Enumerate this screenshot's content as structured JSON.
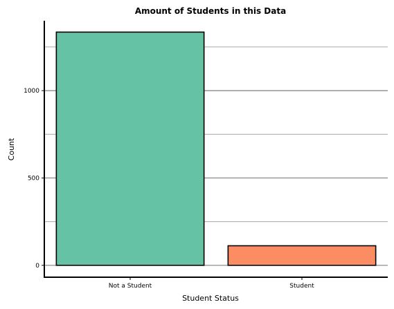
{
  "chart_data": {
    "type": "bar",
    "title": "Amount of Students in this Data",
    "xlabel": "Student Status",
    "ylabel": "Count",
    "categories": [
      "Not a Student",
      "Student"
    ],
    "values": [
      1335,
      112
    ],
    "colors": [
      "#66c2a5",
      "#fc8d62"
    ],
    "ylim": [
      -68,
      1400
    ],
    "yticks": [
      0,
      500,
      1000
    ],
    "ytick_labels": [
      "0",
      "500",
      "1000"
    ],
    "grid": {
      "axis": "y",
      "major": [
        0,
        500,
        1000
      ],
      "minor": [
        250,
        750,
        1250
      ],
      "major_color": "#7f7f7f",
      "minor_color": "#a6a6a6"
    },
    "bar_edge_color": "#000000"
  }
}
